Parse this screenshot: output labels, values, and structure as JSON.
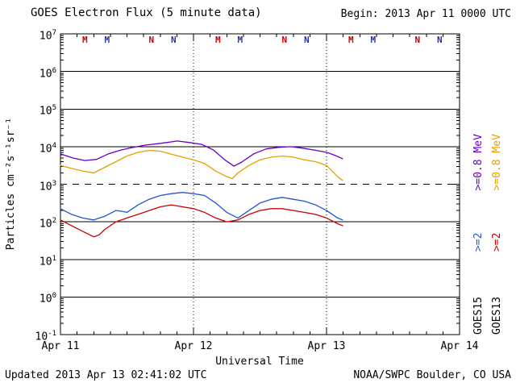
{
  "header": {
    "title": "GOES Electron Flux (5 minute data)",
    "begin_label": "Begin: 2013 Apr 11 0000 UTC"
  },
  "footer": {
    "updated": "Updated 2013 Apr 13 02:41:02 UTC",
    "source": "NOAA/SWPC Boulder, CO USA"
  },
  "axes": {
    "y_label": "Particles cm⁻²s⁻¹sr⁻¹",
    "x_label": "Universal Time",
    "y_tick_exponents": [
      7,
      6,
      5,
      4,
      3,
      2,
      1,
      0,
      -1
    ],
    "x_tick_labels": [
      "Apr 11",
      "Apr 12",
      "Apr 13",
      "Apr 14"
    ]
  },
  "right_legend": {
    "goes15": {
      "satellite": "GOES15",
      "ge2": ">=2",
      "ge08": ">=0.8 MeV",
      "ge2_color": "#2255cc",
      "ge08_color": "#6600cc",
      "sat_color": "#000000"
    },
    "goes13": {
      "satellite": "GOES13",
      "ge2": ">=2",
      "ge08": ">=0.8 MeV",
      "ge2_color": "#cc0000",
      "ge08_color": "#e8a000",
      "sat_color": "#000000"
    }
  },
  "markers": [
    {
      "label": "M",
      "hour": 4.4,
      "color": "#cc0000"
    },
    {
      "label": "M",
      "hour": 8.4,
      "color": "#2233aa"
    },
    {
      "label": "N",
      "hour": 16.4,
      "color": "#cc0000"
    },
    {
      "label": "N",
      "hour": 20.4,
      "color": "#2233aa"
    },
    {
      "label": "M",
      "hour": 28.4,
      "color": "#cc0000"
    },
    {
      "label": "M",
      "hour": 32.4,
      "color": "#2233aa"
    },
    {
      "label": "N",
      "hour": 40.4,
      "color": "#cc0000"
    },
    {
      "label": "N",
      "hour": 44.4,
      "color": "#2233aa"
    },
    {
      "label": "M",
      "hour": 52.4,
      "color": "#cc0000"
    },
    {
      "label": "M",
      "hour": 56.4,
      "color": "#2233aa"
    },
    {
      "label": "N",
      "hour": 64.4,
      "color": "#cc0000"
    },
    {
      "label": "N",
      "hour": 68.4,
      "color": "#2233aa"
    }
  ],
  "chart_data": {
    "type": "line",
    "title": "GOES Electron Flux (5 minute data)",
    "xlabel": "Universal Time",
    "ylabel": "Particles cm⁻²s⁻¹sr⁻¹",
    "x_unit": "hours since 2013 Apr 11 0000 UTC",
    "xlim_hours": [
      0,
      72
    ],
    "ylim_log10": [
      -1,
      7
    ],
    "y_scale": "log",
    "threshold": 1000,
    "day_boundaries_hours": [
      24,
      48
    ],
    "legend_position": "right-vertical",
    "series": [
      {
        "name": "GOES15 >=0.8 MeV",
        "color": "#6600cc",
        "points": [
          [
            0,
            6460
          ],
          [
            2.2,
            5010
          ],
          [
            4.4,
            4270
          ],
          [
            6.5,
            4570
          ],
          [
            8.7,
            6460
          ],
          [
            10.9,
            8130
          ],
          [
            13.1,
            9550
          ],
          [
            15.3,
            10960
          ],
          [
            18.2,
            12300
          ],
          [
            21.1,
            14130
          ],
          [
            23.3,
            12880
          ],
          [
            25.5,
            11480
          ],
          [
            27.6,
            8130
          ],
          [
            29.8,
            4270
          ],
          [
            31.3,
            3020
          ],
          [
            32.7,
            3890
          ],
          [
            34.9,
            6460
          ],
          [
            37.1,
            8710
          ],
          [
            39.3,
            9550
          ],
          [
            41.5,
            10000
          ],
          [
            43.6,
            9120
          ],
          [
            45.8,
            8130
          ],
          [
            48,
            7080
          ],
          [
            49.5,
            5890
          ],
          [
            50.9,
            4790
          ]
        ]
      },
      {
        "name": "GOES13 >=0.8 MeV",
        "color": "#e8a000",
        "points": [
          [
            0,
            3160
          ],
          [
            2,
            2630
          ],
          [
            4,
            2240
          ],
          [
            6,
            2000
          ],
          [
            8,
            2820
          ],
          [
            10,
            3980
          ],
          [
            12,
            5620
          ],
          [
            14,
            7080
          ],
          [
            16,
            7940
          ],
          [
            18,
            7590
          ],
          [
            20,
            6310
          ],
          [
            22,
            5250
          ],
          [
            24,
            4470
          ],
          [
            26,
            3550
          ],
          [
            28,
            2240
          ],
          [
            30,
            1580
          ],
          [
            31,
            1410
          ],
          [
            32,
            2000
          ],
          [
            34,
            3160
          ],
          [
            36,
            4470
          ],
          [
            38,
            5250
          ],
          [
            40,
            5620
          ],
          [
            42,
            5250
          ],
          [
            44,
            4470
          ],
          [
            46,
            3980
          ],
          [
            48,
            3160
          ],
          [
            50,
            1580
          ],
          [
            50.9,
            1260
          ]
        ]
      },
      {
        "name": "GOES15 >=2 MeV",
        "color": "#2255cc",
        "points": [
          [
            0,
            224
          ],
          [
            2,
            158
          ],
          [
            4,
            126
          ],
          [
            6,
            112
          ],
          [
            8,
            141
          ],
          [
            10,
            200
          ],
          [
            11,
            191
          ],
          [
            12,
            178
          ],
          [
            14,
            282
          ],
          [
            16,
            398
          ],
          [
            18,
            501
          ],
          [
            20,
            562
          ],
          [
            22,
            603
          ],
          [
            24,
            562
          ],
          [
            26,
            501
          ],
          [
            28,
            316
          ],
          [
            30,
            178
          ],
          [
            32,
            126
          ],
          [
            34,
            200
          ],
          [
            36,
            316
          ],
          [
            38,
            398
          ],
          [
            40,
            447
          ],
          [
            42,
            398
          ],
          [
            44,
            355
          ],
          [
            46,
            282
          ],
          [
            48,
            200
          ],
          [
            50,
            126
          ],
          [
            50.9,
            112
          ]
        ]
      },
      {
        "name": "GOES13 >=2 MeV",
        "color": "#cc0000",
        "points": [
          [
            0,
            112
          ],
          [
            2,
            79
          ],
          [
            4,
            56
          ],
          [
            6,
            40
          ],
          [
            7,
            45
          ],
          [
            8,
            63
          ],
          [
            10,
            100
          ],
          [
            12,
            126
          ],
          [
            14,
            158
          ],
          [
            16,
            200
          ],
          [
            18,
            251
          ],
          [
            20,
            282
          ],
          [
            22,
            251
          ],
          [
            24,
            224
          ],
          [
            26,
            178
          ],
          [
            28,
            126
          ],
          [
            30,
            100
          ],
          [
            32,
            112
          ],
          [
            34,
            158
          ],
          [
            36,
            200
          ],
          [
            38,
            224
          ],
          [
            40,
            224
          ],
          [
            42,
            200
          ],
          [
            44,
            178
          ],
          [
            46,
            158
          ],
          [
            48,
            126
          ],
          [
            50,
            89
          ],
          [
            50.9,
            79
          ]
        ]
      }
    ]
  }
}
